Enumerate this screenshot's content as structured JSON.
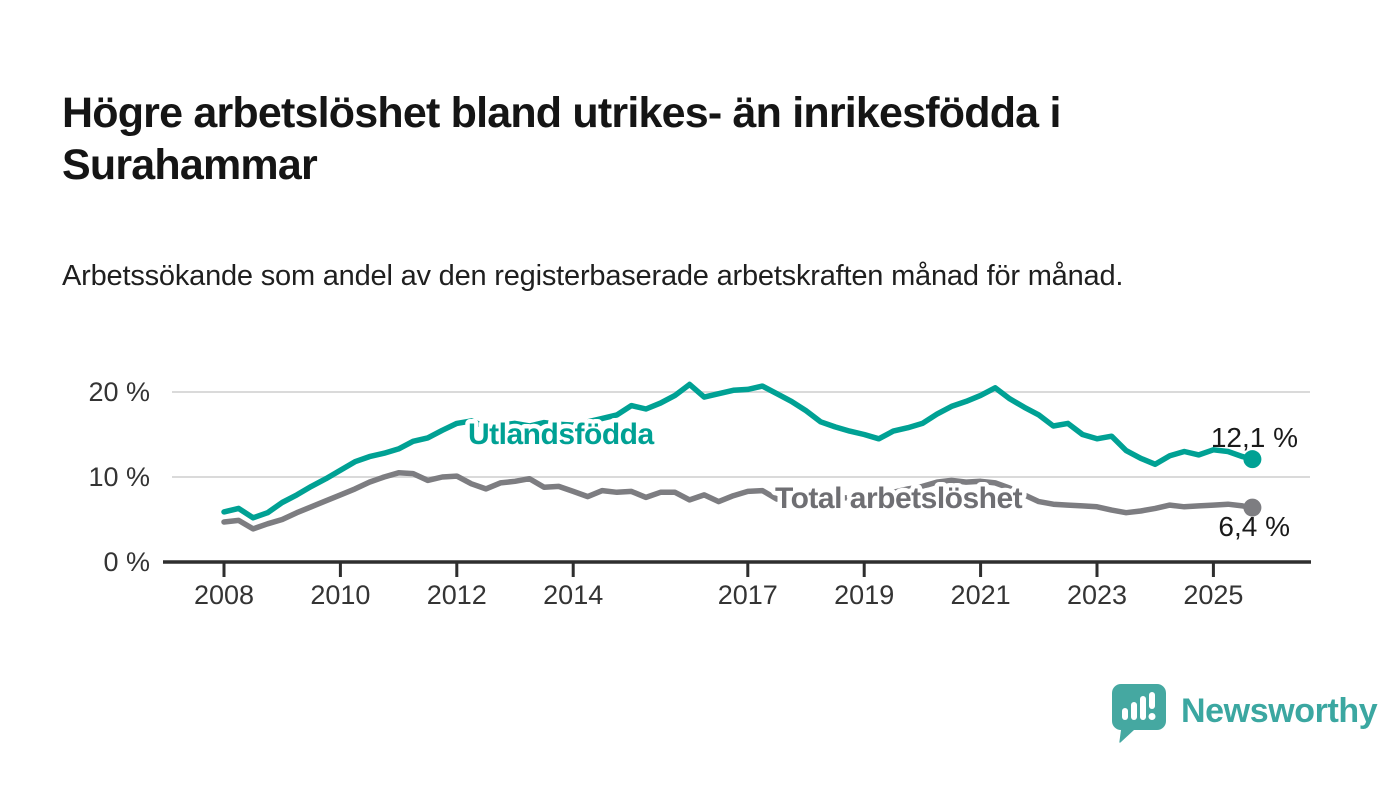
{
  "header": {
    "title": "Högre arbetslöshet bland utrikes- än inrikesfödda i Surahammar",
    "subtitle": "Arbetssökande som andel av den registerbaserade arbetskraften månad för månad."
  },
  "chart_data": {
    "type": "line",
    "unit": "%",
    "grid": "horizontal",
    "x_axis": {
      "ticks": [
        2008,
        2010,
        2012,
        2014,
        2017,
        2019,
        2021,
        2023,
        2025
      ]
    },
    "y_axis": {
      "ticks": [
        0,
        10,
        20
      ],
      "tick_labels": [
        "0 %",
        "10 %",
        "20 %"
      ],
      "range": [
        0,
        24
      ]
    },
    "x": [
      2008,
      2008.25,
      2008.5,
      2008.75,
      2009,
      2009.25,
      2009.5,
      2009.75,
      2010,
      2010.25,
      2010.5,
      2010.75,
      2011,
      2011.25,
      2011.5,
      2011.75,
      2012,
      2012.25,
      2012.5,
      2012.75,
      2013,
      2013.25,
      2013.5,
      2013.75,
      2014,
      2014.25,
      2014.5,
      2014.75,
      2015,
      2015.25,
      2015.5,
      2015.75,
      2016,
      2016.25,
      2016.5,
      2016.75,
      2017,
      2017.25,
      2017.5,
      2017.75,
      2018,
      2018.25,
      2018.5,
      2018.75,
      2019,
      2019.25,
      2019.5,
      2019.75,
      2020,
      2020.25,
      2020.5,
      2020.75,
      2021,
      2021.25,
      2021.5,
      2021.75,
      2022,
      2022.25,
      2022.5,
      2022.75,
      2023,
      2023.25,
      2023.5,
      2023.75,
      2024,
      2024.25,
      2024.5,
      2024.75,
      2025,
      2025.25,
      2025.5,
      2025.67
    ],
    "series": [
      {
        "name": "Utlandsfödda",
        "color": "#00a194",
        "end_label": "12,1 %",
        "end_value": 12.1,
        "values": [
          5.9,
          6.3,
          5.2,
          5.8,
          7.0,
          7.9,
          8.9,
          9.8,
          10.8,
          11.8,
          12.4,
          12.8,
          13.3,
          14.2,
          14.6,
          15.5,
          16.3,
          16.6,
          15.9,
          16.1,
          16.3,
          16.0,
          16.4,
          16.2,
          16.1,
          16.5,
          16.9,
          17.3,
          18.4,
          18.0,
          18.7,
          19.6,
          20.9,
          19.4,
          19.8,
          20.2,
          20.3,
          20.7,
          19.8,
          18.9,
          17.8,
          16.5,
          15.9,
          15.4,
          15.0,
          14.5,
          15.4,
          15.8,
          16.3,
          17.4,
          18.3,
          18.9,
          19.6,
          20.5,
          19.2,
          18.2,
          17.3,
          16.0,
          16.3,
          15.0,
          14.5,
          14.8,
          13.1,
          12.2,
          11.5,
          12.5,
          13.0,
          12.6,
          13.2,
          13.0,
          12.4,
          12.1
        ]
      },
      {
        "name": "Total arbetslöshet",
        "color": "#7d7d81",
        "end_label": "6,4 %",
        "end_value": 6.4,
        "values": [
          4.7,
          4.9,
          3.9,
          4.5,
          5.0,
          5.8,
          6.5,
          7.2,
          7.9,
          8.6,
          9.4,
          10.0,
          10.5,
          10.4,
          9.6,
          10.0,
          10.1,
          9.2,
          8.6,
          9.3,
          9.5,
          9.8,
          8.8,
          8.9,
          8.3,
          7.7,
          8.4,
          8.2,
          8.3,
          7.6,
          8.2,
          8.2,
          7.3,
          7.9,
          7.1,
          7.8,
          8.3,
          8.4,
          7.4,
          7.8,
          7.9,
          7.6,
          7.7,
          7.5,
          7.6,
          7.8,
          8.2,
          8.6,
          8.9,
          9.4,
          9.6,
          9.4,
          9.5,
          9.3,
          8.7,
          7.9,
          7.1,
          6.8,
          6.7,
          6.6,
          6.5,
          6.1,
          5.8,
          6.0,
          6.3,
          6.7,
          6.5,
          6.6,
          6.7,
          6.8,
          6.6,
          6.4
        ]
      }
    ],
    "styles": {
      "axis_color": "#2e2e2e",
      "grid_color": "#dadada",
      "tick_label_color": "#343434",
      "value_label_color": "#1a1a1a",
      "series_label_colors": [
        "#00a194",
        "#6f6f73"
      ]
    }
  },
  "footer": {
    "brand": "Newsworthy",
    "brand_color": "#3ba7a1",
    "logo_icon": "newsworthy-speech-bubble-chart-icon"
  }
}
